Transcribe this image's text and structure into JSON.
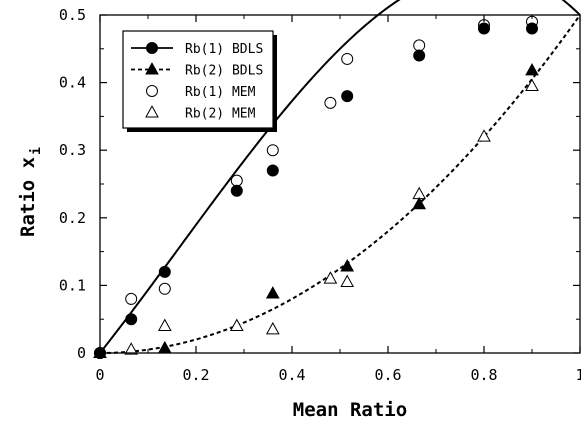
{
  "chart_data": {
    "type": "scatter",
    "xlabel": "Mean Ratio",
    "ylabel": "Ratio x",
    "ylabel_subscript": "i",
    "xlim": [
      0,
      1
    ],
    "ylim": [
      0,
      0.5
    ],
    "x_ticks": [
      0,
      0.2,
      0.4,
      0.6,
      0.8,
      1
    ],
    "x_tick_labels": [
      "0",
      "0.2",
      "0.4",
      "0.6",
      "0.8",
      "1"
    ],
    "y_ticks": [
      0,
      0.1,
      0.2,
      0.3,
      0.4,
      0.5
    ],
    "y_tick_labels": [
      "0",
      "0.1",
      "0.2",
      "0.3",
      "0.4",
      "0.5"
    ],
    "grid": false,
    "legend_position": "top-left",
    "series": [
      {
        "name": "Rb(1) BDLS",
        "marker": "filled-circle",
        "line": "solid",
        "points": [
          [
            0,
            0
          ],
          [
            0.065,
            0.05
          ],
          [
            0.135,
            0.12
          ],
          [
            0.285,
            0.24
          ],
          [
            0.36,
            0.27
          ],
          [
            0.515,
            0.38
          ],
          [
            0.665,
            0.44
          ],
          [
            0.8,
            0.48
          ],
          [
            0.9,
            0.48
          ]
        ]
      },
      {
        "name": "Rb(2) BDLS",
        "marker": "filled-triangle",
        "line": "dashed",
        "points": [
          [
            0,
            0
          ],
          [
            0.135,
            0.007
          ],
          [
            0.36,
            0.088
          ],
          [
            0.515,
            0.128
          ],
          [
            0.665,
            0.22
          ],
          [
            0.9,
            0.418
          ]
        ]
      },
      {
        "name": "Rb(1) MEM",
        "marker": "open-circle",
        "line": "none",
        "points": [
          [
            0,
            0
          ],
          [
            0.065,
            0.08
          ],
          [
            0.135,
            0.095
          ],
          [
            0.285,
            0.255
          ],
          [
            0.36,
            0.3
          ],
          [
            0.48,
            0.37
          ],
          [
            0.515,
            0.435
          ],
          [
            0.665,
            0.455
          ],
          [
            0.8,
            0.485
          ],
          [
            0.9,
            0.49
          ]
        ]
      },
      {
        "name": "Rb(2) MEM",
        "marker": "open-triangle",
        "line": "none",
        "points": [
          [
            0.065,
            0.005
          ],
          [
            0.135,
            0.04
          ],
          [
            0.285,
            0.04
          ],
          [
            0.36,
            0.035
          ],
          [
            0.48,
            0.11
          ],
          [
            0.515,
            0.105
          ],
          [
            0.665,
            0.235
          ],
          [
            0.8,
            0.32
          ],
          [
            0.9,
            0.395
          ]
        ]
      }
    ],
    "fit_curves": [
      {
        "series": "Rb(1) BDLS",
        "style": "solid",
        "a": 0.9,
        "b": 0.4,
        "c": 0
      },
      {
        "series": "Rb(2) BDLS",
        "style": "dashed",
        "a": 0,
        "b": 0.5,
        "c": 0
      }
    ]
  }
}
